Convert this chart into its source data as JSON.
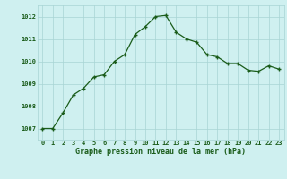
{
  "x": [
    0,
    1,
    2,
    3,
    4,
    5,
    6,
    7,
    8,
    9,
    10,
    11,
    12,
    13,
    14,
    15,
    16,
    17,
    18,
    19,
    20,
    21,
    22,
    23
  ],
  "y": [
    1007.0,
    1007.0,
    1007.7,
    1008.5,
    1008.8,
    1009.3,
    1009.4,
    1010.0,
    1010.3,
    1011.2,
    1011.55,
    1012.0,
    1012.05,
    1011.3,
    1011.0,
    1010.85,
    1010.3,
    1010.2,
    1009.9,
    1009.9,
    1009.6,
    1009.55,
    1009.8,
    1009.65
  ],
  "line_color": "#1a5c1a",
  "marker": "+",
  "marker_size": 3.5,
  "marker_linewidth": 1.0,
  "bg_color": "#cff0f0",
  "grid_color": "#a8d4d4",
  "xlabel": "Graphe pression niveau de la mer (hPa)",
  "xlabel_color": "#1a5c1a",
  "tick_color": "#1a5c1a",
  "ylabel_ticks": [
    1007,
    1008,
    1009,
    1010,
    1011,
    1012
  ],
  "xlim": [
    -0.5,
    23.5
  ],
  "ylim": [
    1006.5,
    1012.5
  ],
  "xticks": [
    0,
    1,
    2,
    3,
    4,
    5,
    6,
    7,
    8,
    9,
    10,
    11,
    12,
    13,
    14,
    15,
    16,
    17,
    18,
    19,
    20,
    21,
    22,
    23
  ],
  "tick_fontsize": 5.0,
  "xlabel_fontsize": 6.0,
  "linewidth": 0.9
}
